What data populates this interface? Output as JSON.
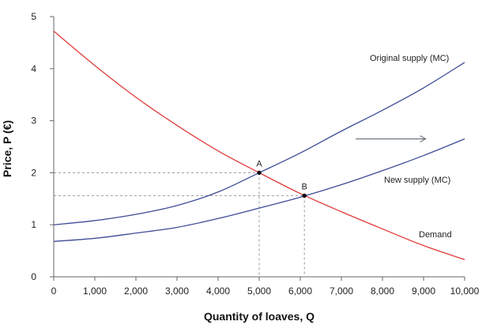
{
  "colors": {
    "supply": "#3e4c96",
    "demand": "#e03b3b",
    "axis": "#666666",
    "guide": "#9a9a9a",
    "arrow": "#6e7580",
    "point": "#000000"
  },
  "chart_data": {
    "type": "line",
    "xlabel": "Quantity of loaves, Q",
    "ylabel": "Price, P (€)",
    "xlim": [
      0,
      10000
    ],
    "ylim": [
      0,
      5
    ],
    "x_ticks": [
      {
        "value": 0,
        "label": "0"
      },
      {
        "value": 1000,
        "label": "1,000"
      },
      {
        "value": 2000,
        "label": "2,000"
      },
      {
        "value": 3000,
        "label": "3,000"
      },
      {
        "value": 4000,
        "label": "4,000"
      },
      {
        "value": 5000,
        "label": "5,000"
      },
      {
        "value": 6000,
        "label": "6,000"
      },
      {
        "value": 7000,
        "label": "7,000"
      },
      {
        "value": 8000,
        "label": "8,000"
      },
      {
        "value": 9000,
        "label": "9,000"
      },
      {
        "value": 10000,
        "label": "10,000"
      }
    ],
    "y_ticks": [
      {
        "value": 0,
        "label": "0"
      },
      {
        "value": 1,
        "label": "1"
      },
      {
        "value": 2,
        "label": "2"
      },
      {
        "value": 3,
        "label": "3"
      },
      {
        "value": 4,
        "label": "4"
      },
      {
        "value": 5,
        "label": "5"
      }
    ],
    "grid": false,
    "series": [
      {
        "name": "Original supply (MC)",
        "color_key": "supply",
        "points": [
          [
            0,
            1.0
          ],
          [
            1000,
            1.08
          ],
          [
            2000,
            1.2
          ],
          [
            3000,
            1.37
          ],
          [
            4000,
            1.63
          ],
          [
            5000,
            2.0
          ],
          [
            6000,
            2.38
          ],
          [
            7000,
            2.8
          ],
          [
            8000,
            3.2
          ],
          [
            9000,
            3.63
          ],
          [
            10000,
            4.12
          ]
        ]
      },
      {
        "name": "New supply (MC)",
        "color_key": "supply",
        "points": [
          [
            0,
            0.68
          ],
          [
            1000,
            0.74
          ],
          [
            2000,
            0.84
          ],
          [
            3000,
            0.95
          ],
          [
            4000,
            1.12
          ],
          [
            5000,
            1.32
          ],
          [
            6000,
            1.53
          ],
          [
            7000,
            1.77
          ],
          [
            8000,
            2.04
          ],
          [
            9000,
            2.33
          ],
          [
            10000,
            2.65
          ]
        ]
      },
      {
        "name": "Demand",
        "color_key": "demand",
        "points": [
          [
            0,
            4.72
          ],
          [
            1000,
            4.06
          ],
          [
            2000,
            3.45
          ],
          [
            3000,
            2.91
          ],
          [
            4000,
            2.42
          ],
          [
            5000,
            2.0
          ],
          [
            6000,
            1.6
          ],
          [
            7000,
            1.25
          ],
          [
            8000,
            0.92
          ],
          [
            9000,
            0.6
          ],
          [
            10000,
            0.33
          ]
        ]
      }
    ],
    "points": [
      {
        "label": "A",
        "x": 5000,
        "y": 2.0
      },
      {
        "label": "B",
        "x": 6100,
        "y": 1.56
      }
    ],
    "shift_arrow": {
      "from": [
        7350,
        2.65
      ],
      "to": [
        9050,
        2.65
      ]
    }
  }
}
